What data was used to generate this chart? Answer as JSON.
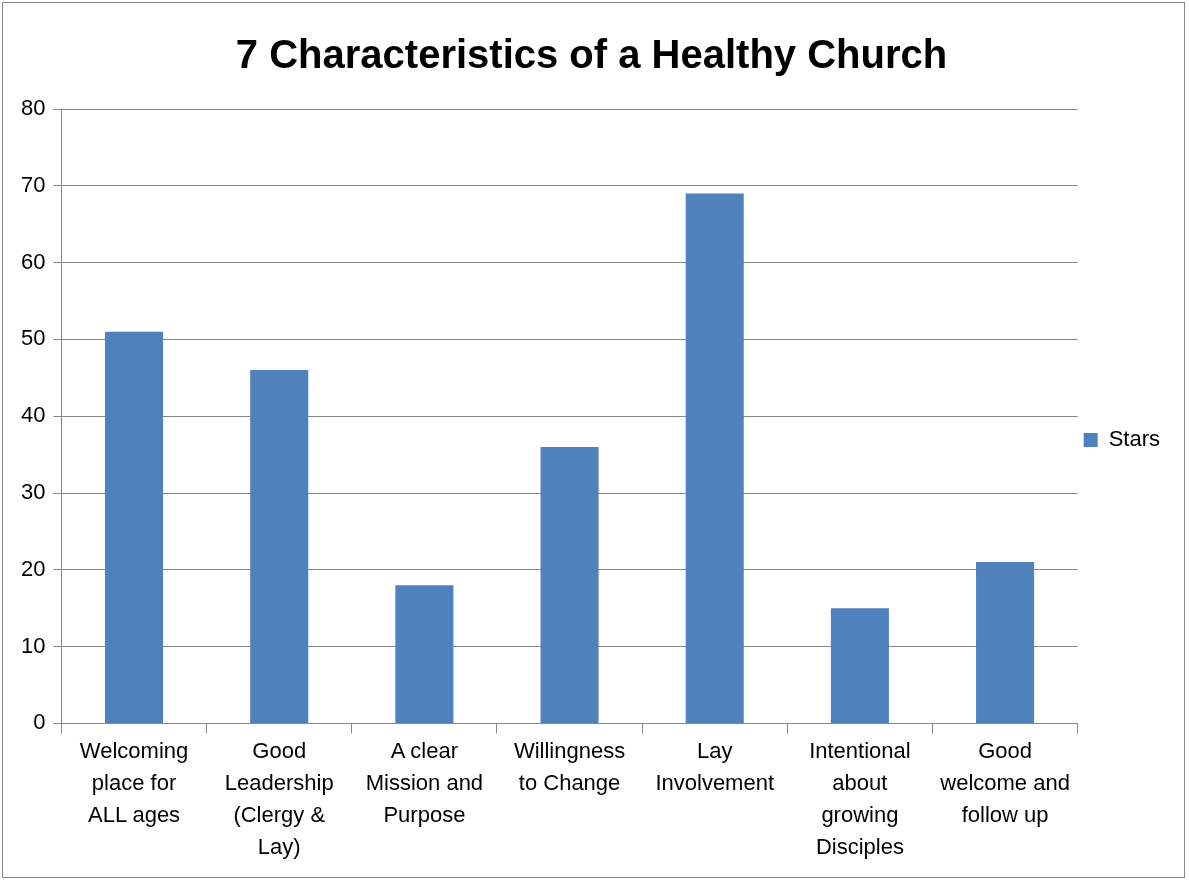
{
  "chart_data": {
    "type": "bar",
    "title": "7 Characteristics of a Healthy Church",
    "categories": [
      "Welcoming place for ALL ages",
      "Good Leadership (Clergy & Lay)",
      "A clear Mission and Purpose",
      "Willingness to Change",
      "Lay Involvement",
      "Intentional about growing Disciples",
      "Good welcome and follow up"
    ],
    "series": [
      {
        "name": "Stars",
        "color": "#4f81bd",
        "values": [
          51,
          46,
          18,
          36,
          69,
          15,
          21
        ]
      }
    ],
    "ylim": [
      0,
      80
    ],
    "yticks": [
      0,
      10,
      20,
      30,
      40,
      50,
      60,
      70,
      80
    ],
    "grid": "y",
    "legend": "right"
  }
}
